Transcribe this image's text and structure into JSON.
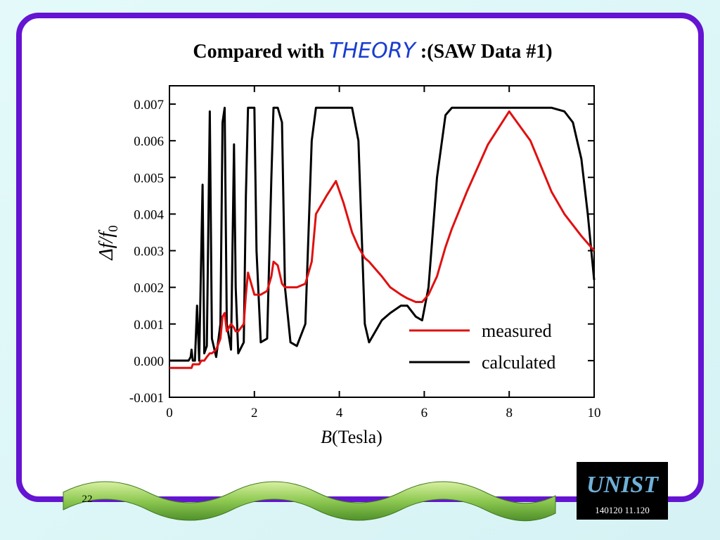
{
  "slide": {
    "title": [
      "Compared with",
      "THEORY",
      ":(SAW Data #1)"
    ],
    "page_number": "22",
    "logo_text": "140120 11.120"
  },
  "chart_data": {
    "type": "line",
    "ylabel": [
      "Δf/f",
      "0"
    ],
    "xlabel": [
      "B",
      "(Tesla)"
    ],
    "xlim": [
      0,
      10
    ],
    "ylim": [
      -0.001,
      0.0075
    ],
    "xticks": [
      0,
      2,
      4,
      6,
      8,
      10
    ],
    "yticks": [
      -0.001,
      {
        "value": 0,
        "label": "0.000"
      },
      0.001,
      0.002,
      0.003,
      0.004,
      0.005,
      0.006,
      0.007
    ],
    "legend": "lower right",
    "x": [
      0,
      0.3,
      0.45,
      0.5,
      0.52,
      0.55,
      0.6,
      0.65,
      0.7,
      0.75,
      0.78,
      0.82,
      0.88,
      0.95,
      1.0,
      1.1,
      1.2,
      1.25,
      1.3,
      1.35,
      1.45,
      1.52,
      1.56,
      1.62,
      1.75,
      1.8,
      1.85,
      1.9,
      2.0,
      2.05,
      2.15,
      2.3,
      2.4,
      2.45,
      2.55,
      2.65,
      2.72,
      2.85,
      3.0,
      3.2,
      3.35,
      3.45,
      3.55,
      3.7,
      3.92,
      4.1,
      4.3,
      4.45,
      4.6,
      4.7,
      4.85,
      5.0,
      5.2,
      5.45,
      5.6,
      5.8,
      5.95,
      6.1,
      6.3,
      6.5,
      6.65,
      7.0,
      7.5,
      8.0,
      8.5,
      9.0,
      9.3,
      9.5,
      9.7,
      9.85,
      10
    ],
    "series": [
      {
        "name": "measured",
        "color": "#e01010",
        "values": [
          -0.0002,
          -0.0002,
          -0.0002,
          -0.0002,
          -0.0002,
          -0.0001,
          -0.0001,
          -0.0001,
          -0.0001,
          0,
          0,
          0,
          0.0001,
          0.0002,
          0.0002,
          0.0003,
          0.0006,
          0.0012,
          0.0013,
          0.0008,
          0.001,
          0.0009,
          0.0008,
          0.0008,
          0.001,
          0.0018,
          0.0024,
          0.0022,
          0.0018,
          0.0018,
          0.0018,
          0.0019,
          0.0023,
          0.0027,
          0.0026,
          0.0021,
          0.002,
          0.002,
          0.002,
          0.0021,
          0.0027,
          0.004,
          0.0042,
          0.0045,
          0.0049,
          0.0043,
          0.0035,
          0.0031,
          0.0028,
          0.0027,
          0.0025,
          0.0023,
          0.002,
          0.0018,
          0.0017,
          0.0016,
          0.0016,
          0.0018,
          0.0023,
          0.0031,
          0.0036,
          0.0046,
          0.0059,
          0.0068,
          0.006,
          0.0046,
          0.004,
          0.0037,
          0.0034,
          0.0032,
          0.003
        ]
      },
      {
        "name": "calculated",
        "color": "#000000",
        "values": [
          0,
          0,
          0,
          0.0001,
          0.0003,
          0,
          0,
          0.0015,
          0,
          0.003,
          0.0048,
          0.0002,
          0.0004,
          0.0068,
          0.0006,
          0.0001,
          0.001,
          0.0065,
          0.0069,
          0.001,
          0.0003,
          0.0059,
          0.002,
          0.0002,
          0.0005,
          0.0045,
          0.0069,
          0.0069,
          0.0069,
          0.003,
          0.0005,
          0.0006,
          0.005,
          0.0069,
          0.0069,
          0.0065,
          0.002,
          0.0005,
          0.0004,
          0.001,
          0.006,
          0.0069,
          0.0069,
          0.0069,
          0.0069,
          0.0069,
          0.0069,
          0.006,
          0.001,
          0.0005,
          0.0008,
          0.0011,
          0.0013,
          0.0015,
          0.0015,
          0.0012,
          0.0011,
          0.002,
          0.005,
          0.0067,
          0.0069,
          0.0069,
          0.0069,
          0.0069,
          0.0069,
          0.0069,
          0.0068,
          0.0065,
          0.0055,
          0.004,
          0.0022
        ]
      }
    ]
  }
}
